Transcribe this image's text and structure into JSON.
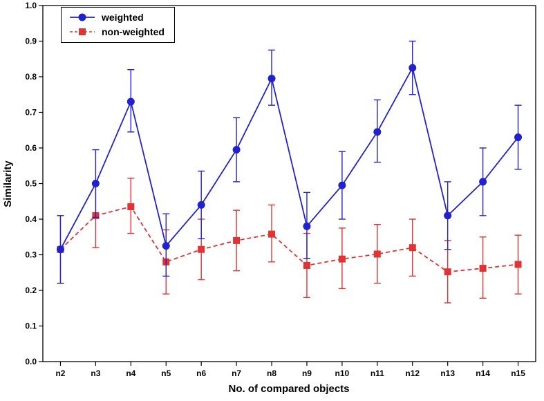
{
  "chart_data": {
    "type": "line",
    "title": "",
    "xlabel": "No. of compared objects",
    "ylabel": "Similarity",
    "categories": [
      "n2",
      "n3",
      "n4",
      "n5",
      "n6",
      "n7",
      "n8",
      "n9",
      "n10",
      "n11",
      "n12",
      "n13",
      "n14",
      "n15"
    ],
    "ylim": [
      0.0,
      1.0
    ],
    "ytick_step": 0.1,
    "grid": false,
    "legend_position": "top-left-inside",
    "series": [
      {
        "name": "weighted",
        "color": "#2222cc",
        "marker": "circle",
        "line_style": "solid",
        "values": [
          0.315,
          0.5,
          0.73,
          0.325,
          0.44,
          0.595,
          0.795,
          0.38,
          0.495,
          0.645,
          0.825,
          0.41,
          0.505,
          0.63
        ],
        "error_low": [
          0.22,
          0.405,
          0.645,
          0.24,
          0.345,
          0.505,
          0.72,
          0.29,
          0.4,
          0.56,
          0.75,
          0.315,
          0.41,
          0.54
        ],
        "error_high": [
          0.41,
          0.595,
          0.82,
          0.415,
          0.535,
          0.685,
          0.875,
          0.475,
          0.59,
          0.735,
          0.9,
          0.505,
          0.6,
          0.72
        ]
      },
      {
        "name": "non-weighted",
        "color": "#e03333",
        "marker": "square",
        "line_style": "dashed",
        "values": [
          0.315,
          0.41,
          0.435,
          0.28,
          0.315,
          0.34,
          0.358,
          0.27,
          0.288,
          0.302,
          0.32,
          0.252,
          0.262,
          0.273
        ],
        "error_low": [
          0.22,
          0.32,
          0.36,
          0.19,
          0.23,
          0.255,
          0.28,
          0.18,
          0.205,
          0.22,
          0.24,
          0.165,
          0.178,
          0.19
        ],
        "error_high": [
          0.41,
          0.5,
          0.515,
          0.37,
          0.4,
          0.425,
          0.44,
          0.36,
          0.375,
          0.385,
          0.4,
          0.34,
          0.35,
          0.355
        ]
      }
    ]
  }
}
